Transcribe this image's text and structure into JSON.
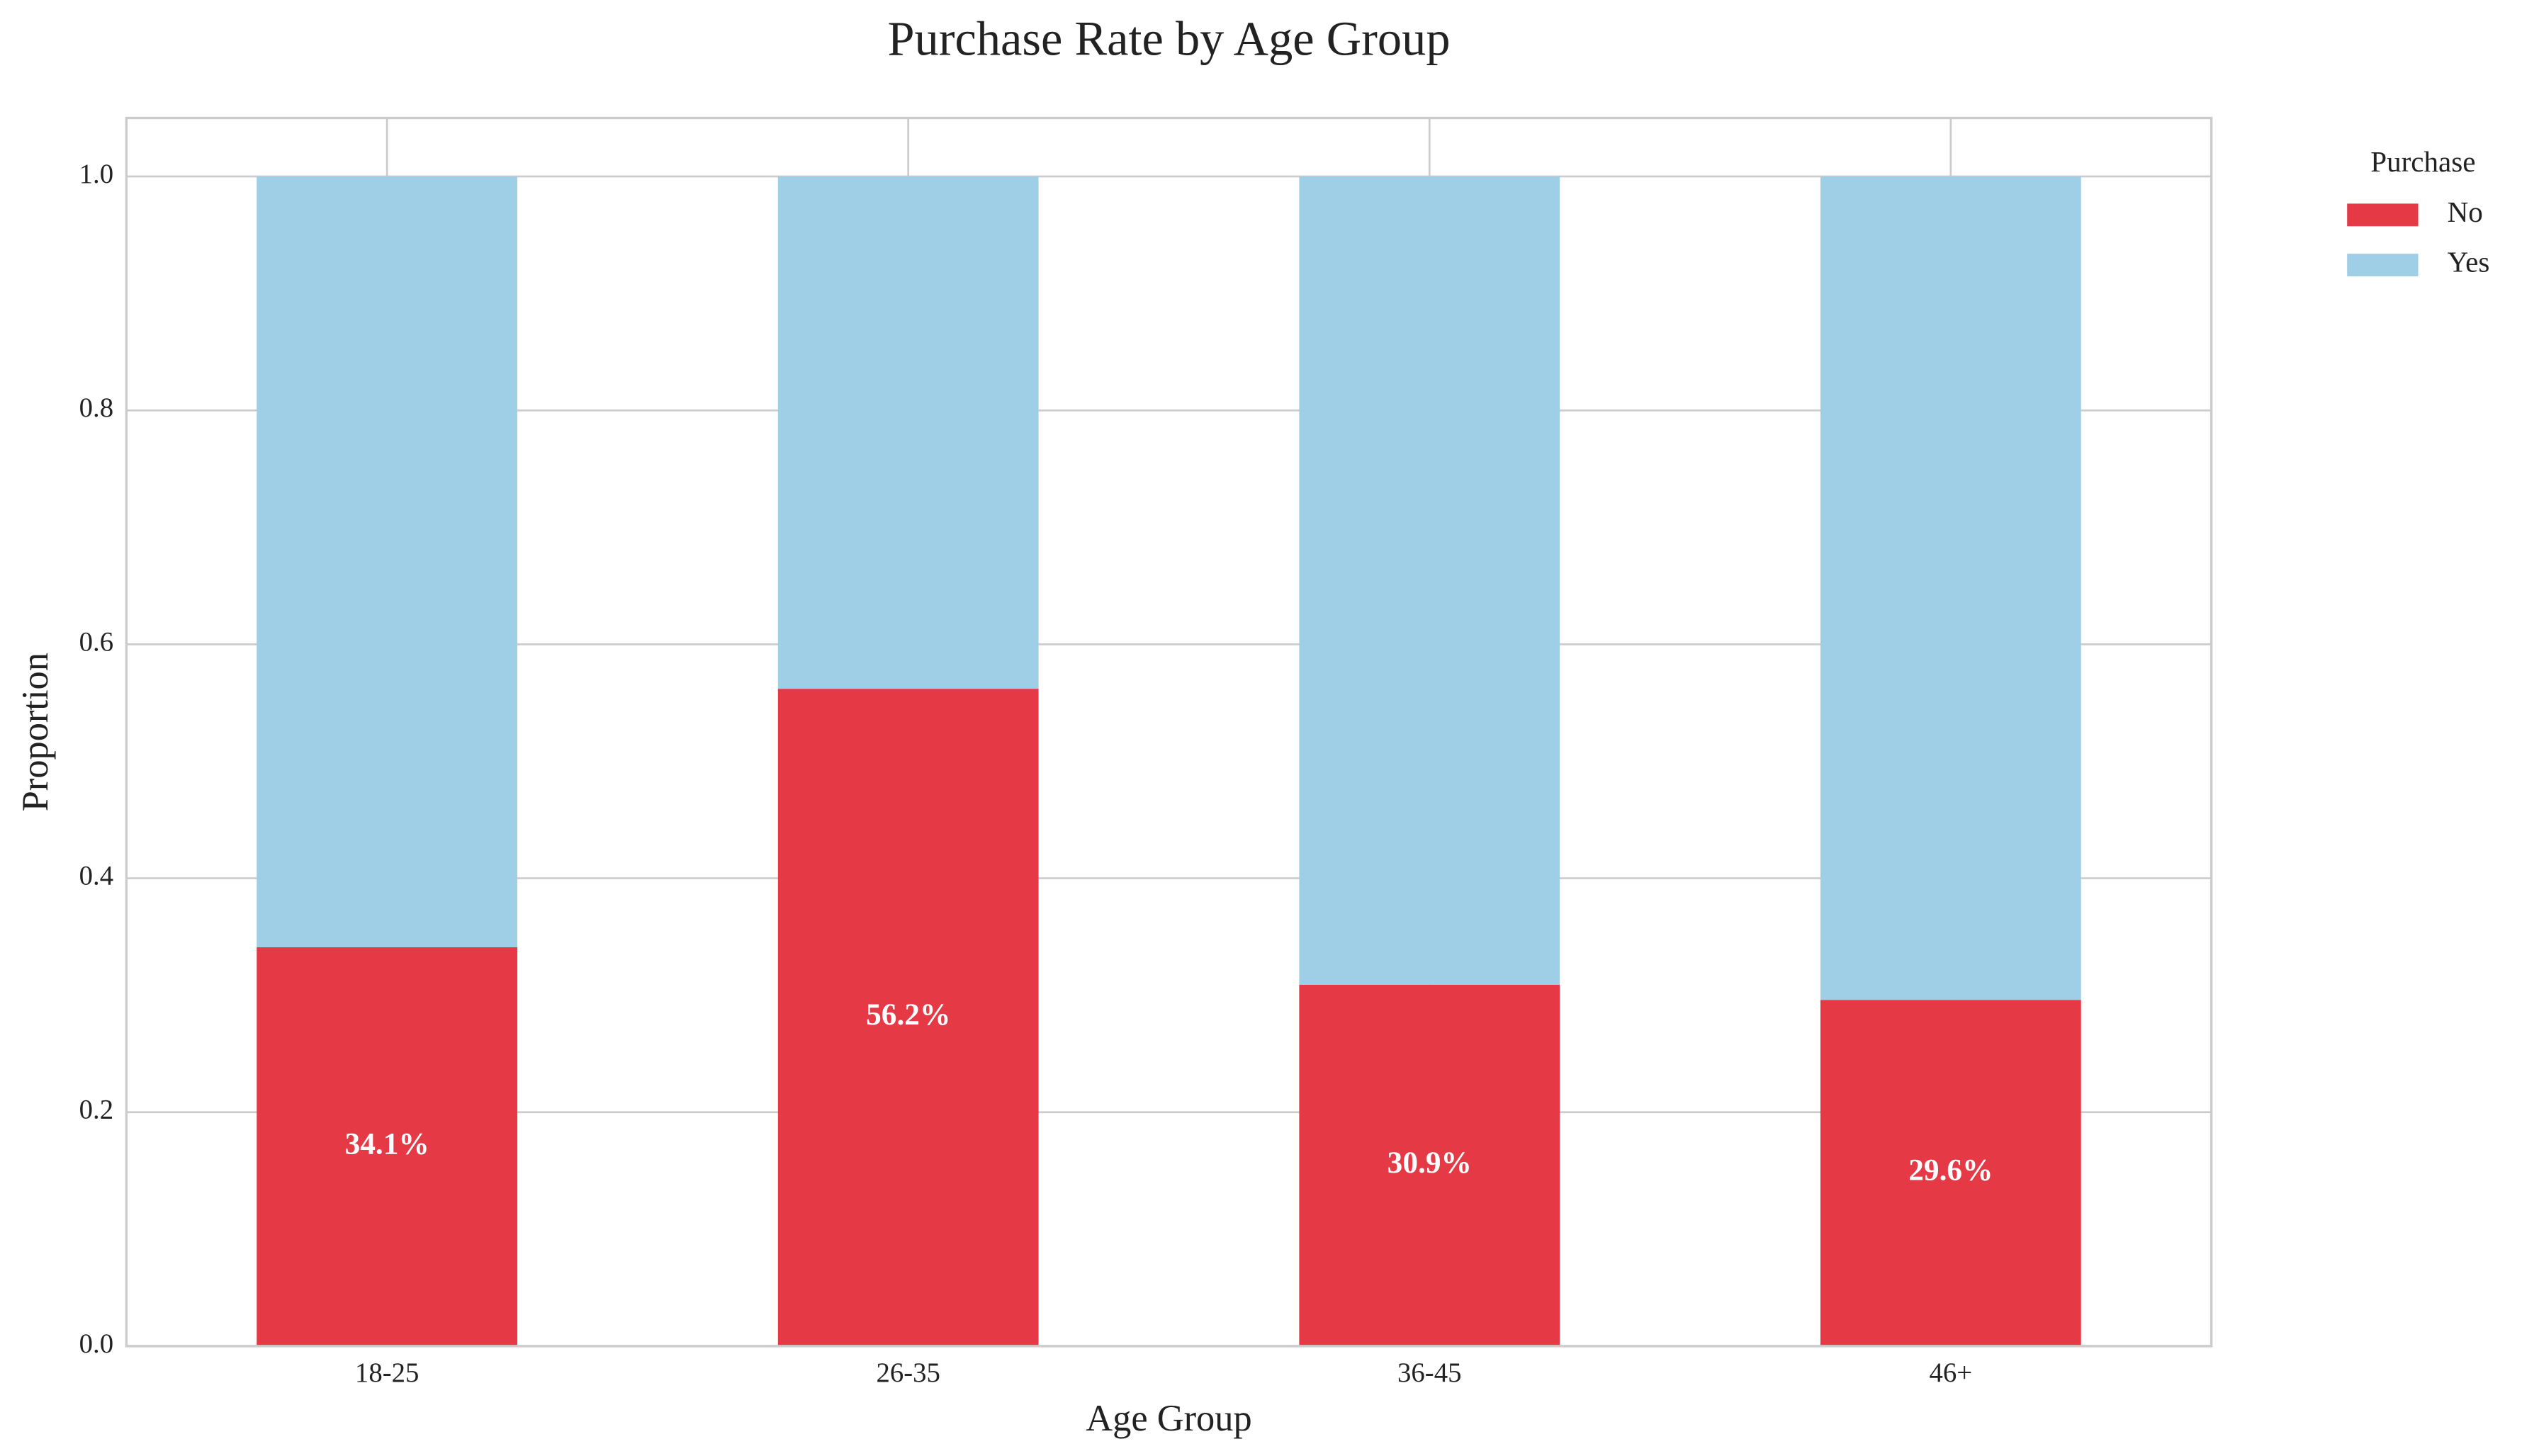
{
  "chart_data": {
    "type": "stacked_bar",
    "title": "Purchase Rate by Age Group",
    "x_label": "Age Group",
    "y_label": "Proportion",
    "categories": [
      "18-25",
      "26-35",
      "36-45",
      "46+"
    ],
    "series": [
      {
        "name": "No",
        "color": "#e63946",
        "values": [
          0.341,
          0.562,
          0.309,
          0.296
        ],
        "value_labels": [
          "34.1%",
          "56.2%",
          "30.9%",
          "29.6%"
        ]
      },
      {
        "name": "Yes",
        "color": "#9ecfe7",
        "values": [
          0.659,
          0.438,
          0.691,
          0.704
        ]
      }
    ],
    "legend_title": "Purchase",
    "legend_position": "outside upper right",
    "ylim": [
      0,
      1.05
    ],
    "yticks": [
      {
        "value": 0,
        "label": "0.0"
      },
      0.2,
      0.4,
      0.6,
      0.8,
      {
        "value": 1,
        "label": "1.0"
      }
    ],
    "grid": true
  }
}
